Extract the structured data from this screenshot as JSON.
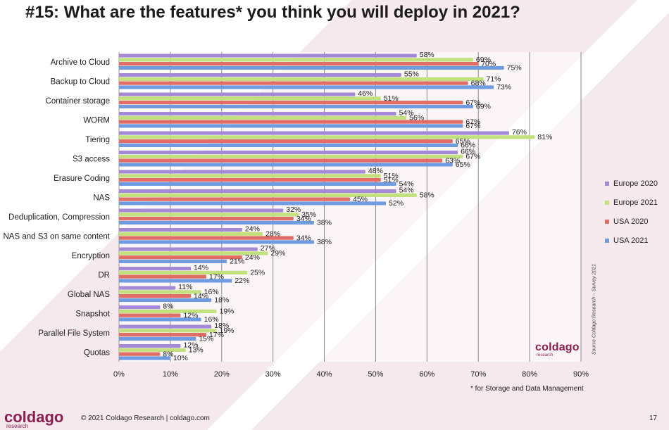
{
  "slide": {
    "title": "#15: What are the features* you think you will deploy in 2021?",
    "footnote": "* for Storage and Data Management",
    "source": "Source Coldago Research – Survey 2021",
    "copyright": "© 2021 Coldago Research | coldago.com",
    "page_number": "17",
    "logo_word": "coldago",
    "logo_sub": "research"
  },
  "chart_data": {
    "type": "bar",
    "orientation": "horizontal",
    "categories": [
      "Archive to Cloud",
      "Backup to Cloud",
      "Container storage",
      "WORM",
      "Tiering",
      "S3 access",
      "Erasure Coding",
      "NAS",
      "Deduplication, Compression",
      "NAS and S3 on same content",
      "Encryption",
      "DR",
      "Global NAS",
      "Snapshot",
      "Parallel File System",
      "Quotas"
    ],
    "series": [
      {
        "name": "Europe 2020",
        "color": "#a48ad6",
        "values": [
          58,
          55,
          46,
          54,
          76,
          66,
          48,
          54,
          32,
          24,
          27,
          14,
          11,
          8,
          18,
          12
        ]
      },
      {
        "name": "Europe 2021",
        "color": "#c3e07f",
        "values": [
          69,
          71,
          51,
          56,
          81,
          67,
          51,
          58,
          35,
          28,
          29,
          25,
          16,
          19,
          19,
          13
        ]
      },
      {
        "name": "USA 2020",
        "color": "#e06d66",
        "values": [
          70,
          68,
          67,
          67,
          65,
          63,
          51,
          45,
          34,
          34,
          24,
          17,
          14,
          12,
          17,
          8
        ]
      },
      {
        "name": "USA 2021",
        "color": "#6f9be0",
        "values": [
          75,
          73,
          69,
          67,
          66,
          65,
          54,
          52,
          38,
          38,
          21,
          22,
          18,
          16,
          15,
          10
        ]
      }
    ],
    "value_suffix": "%",
    "xlim": [
      0,
      90
    ],
    "xticks": [
      0,
      10,
      20,
      30,
      40,
      50,
      60,
      70,
      80,
      90
    ],
    "tick_suffix": "%",
    "grid": true,
    "legend_position": "right"
  }
}
